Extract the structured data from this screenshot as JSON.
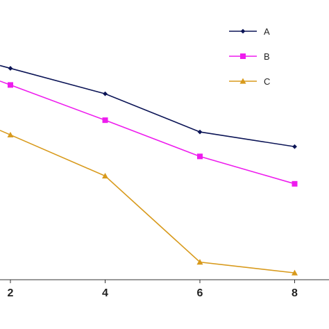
{
  "chart_data": {
    "type": "line",
    "x": [
      2,
      4,
      6,
      8
    ],
    "x_ticks": [
      "2",
      "4",
      "6",
      "8"
    ],
    "series": [
      {
        "name": "A",
        "values": [
          10.8,
          9.5,
          7.55,
          6.8
        ],
        "color": "#0b1456",
        "marker": "diamond"
      },
      {
        "name": "B",
        "values": [
          9.95,
          8.15,
          6.3,
          4.9
        ],
        "color": "#ee1cee",
        "marker": "square"
      },
      {
        "name": "C",
        "values": [
          7.4,
          5.3,
          0.9,
          0.35
        ],
        "color": "#d89a1c",
        "marker": "triangle"
      }
    ],
    "legend": "top-right",
    "grid": false,
    "title": "",
    "xlabel": "",
    "ylabel": ""
  }
}
